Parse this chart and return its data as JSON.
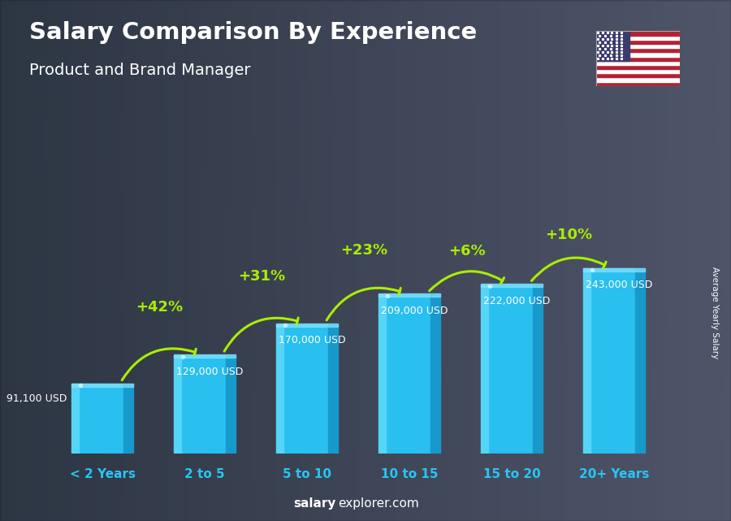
{
  "title": "Salary Comparison By Experience",
  "subtitle": "Product and Brand Manager",
  "categories": [
    "< 2 Years",
    "2 to 5",
    "5 to 10",
    "10 to 15",
    "15 to 20",
    "20+ Years"
  ],
  "values": [
    91100,
    129000,
    170000,
    209000,
    222000,
    243000
  ],
  "salary_labels": [
    "91,100 USD",
    "129,000 USD",
    "170,000 USD",
    "209,000 USD",
    "222,000 USD",
    "243,000 USD"
  ],
  "pct_changes": [
    "+42%",
    "+31%",
    "+23%",
    "+6%",
    "+10%"
  ],
  "bar_color_main": "#29bfef",
  "bar_color_left": "#55d5f8",
  "bar_color_right": "#1899cc",
  "bar_color_top": "#85e5ff",
  "pct_color": "#aaee00",
  "salary_label_color": "#ffffff",
  "title_color": "#ffffff",
  "subtitle_color": "#ffffff",
  "xlabel_color": "#29c5f6",
  "watermark_bold": "salary",
  "watermark_regular": "explorer.com",
  "right_label": "Average Yearly Salary",
  "figsize": [
    9.0,
    6.41
  ],
  "bar_positions": [
    0,
    1,
    2,
    3,
    4,
    5
  ],
  "bar_width": 0.6,
  "ylim_max": 1.55
}
